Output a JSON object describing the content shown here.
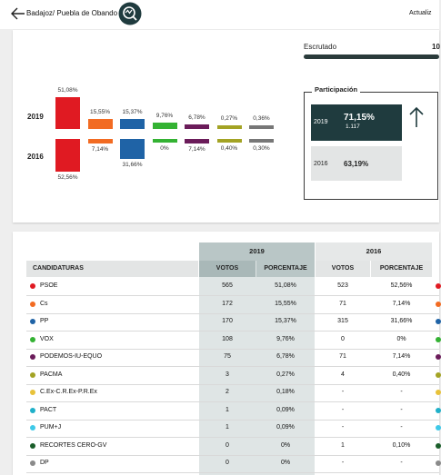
{
  "header": {
    "breadcrumb": "Badajoz/ Puebla de Obando",
    "updated_label": "Actualiz"
  },
  "summary": {
    "bars": [
      {
        "color": "#e01a22",
        "v2019": 51.08,
        "l2019": "51,08%",
        "v2016": 52.56,
        "l2016": "52,56%"
      },
      {
        "color": "#f26b22",
        "v2019": 15.55,
        "l2019": "15,55%",
        "v2016": 7.14,
        "l2016": "7,14%"
      },
      {
        "color": "#1f63a6",
        "v2019": 15.37,
        "l2019": "15,37%",
        "v2016": 31.66,
        "l2016": "31,66%"
      },
      {
        "color": "#34b233",
        "v2019": 9.76,
        "l2019": "9,76%",
        "v2016": 0,
        "l2016": "0%"
      },
      {
        "color": "#6b1c5a",
        "v2019": 6.78,
        "l2019": "6,78%",
        "v2016": 7.14,
        "l2016": "7,14%"
      },
      {
        "color": "#a3a324",
        "v2019": 0.27,
        "l2019": "0,27%",
        "v2016": 0.4,
        "l2016": "0,40%"
      },
      {
        "color": "#777777",
        "v2019": 0.36,
        "l2019": "0,36%",
        "v2016": 0.3,
        "l2016": "0,30%"
      }
    ],
    "year_2019": "2019",
    "year_2016": "2016"
  },
  "escrutado": {
    "label": "Escrutado",
    "value": "10"
  },
  "participacion": {
    "title": "Participación",
    "y2019": {
      "year": "2019",
      "pct": "71,15%",
      "count": "1.117"
    },
    "y2016": {
      "year": "2016",
      "pct": "63,19%"
    }
  },
  "table": {
    "group_2019": "2019",
    "group_2016": "2016",
    "headers": {
      "candidaturas": "CANDIDATURAS",
      "votos": "VOTOS",
      "porcentaje": "PORCENTAJE"
    },
    "rows": [
      {
        "color": "#e01a22",
        "name": "PSOE",
        "v19": "565",
        "p19": "51,08%",
        "v16": "523",
        "p16": "52,56%"
      },
      {
        "color": "#f26b22",
        "name": "Cs",
        "v19": "172",
        "p19": "15,55%",
        "v16": "71",
        "p16": "7,14%"
      },
      {
        "color": "#1f63a6",
        "name": "PP",
        "v19": "170",
        "p19": "15,37%",
        "v16": "315",
        "p16": "31,66%"
      },
      {
        "color": "#34b233",
        "name": "VOX",
        "v19": "108",
        "p19": "9,76%",
        "v16": "0",
        "p16": "0%"
      },
      {
        "color": "#6b1c5a",
        "name": "PODEMOS-IU-EQUO",
        "v19": "75",
        "p19": "6,78%",
        "v16": "71",
        "p16": "7,14%"
      },
      {
        "color": "#a3a324",
        "name": "PACMA",
        "v19": "3",
        "p19": "0,27%",
        "v16": "4",
        "p16": "0,40%"
      },
      {
        "color": "#e8c23a",
        "name": "C.Ex-C.R.Ex-P.R.Ex",
        "v19": "2",
        "p19": "0,18%",
        "v16": "-",
        "p16": "-"
      },
      {
        "color": "#1fb0c9",
        "name": "PACT",
        "v19": "1",
        "p19": "0,09%",
        "v16": "-",
        "p16": "-"
      },
      {
        "color": "#3ec9e8",
        "name": "PUM+J",
        "v19": "1",
        "p19": "0,09%",
        "v16": "-",
        "p16": "-"
      },
      {
        "color": "#1a5e2a",
        "name": "RECORTES CERO-GV",
        "v19": "0",
        "p19": "0%",
        "v16": "1",
        "p16": "0,10%"
      },
      {
        "color": "#8a8a8a",
        "name": "DP",
        "v19": "0",
        "p19": "0%",
        "v16": "-",
        "p16": "-"
      }
    ]
  },
  "colors": {
    "accent_dark": "#1f3b3e",
    "col_2019_bg": "#dfe5e5",
    "col_2019_head": "#b9c6c6"
  }
}
